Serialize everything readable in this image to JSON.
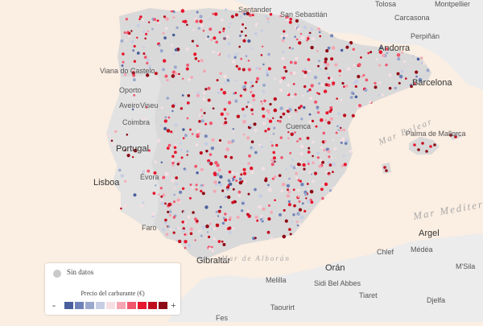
{
  "labels": {
    "places": [
      "Santander",
      "San Sebastián",
      "Tolosa",
      "Montpellier",
      "Carcasona",
      "Perpiñán",
      "Andorra",
      "Barcelona",
      "Viana do Castelo",
      "Oporto",
      "Aveiro",
      "Viseu",
      "Coimbra",
      "Portugal",
      "Lisboa",
      "Évora",
      "Faro",
      "Cuenca",
      "Palma de Mallorca",
      "Argel",
      "Gibraltar",
      "Orán",
      "Melilla",
      "Sidi Bel Abbes",
      "Chlef",
      "Médéa",
      "M'Sila",
      "Djelfa",
      "Tiaret",
      "Taourirt",
      "Fes"
    ],
    "seas": [
      "Mar Balear",
      "Mar Mediterráneo",
      "Mar de Alborán"
    ]
  },
  "legend": {
    "nodata_label": "Sin datos",
    "title": "Precio del carburante (€)",
    "minus": "-",
    "plus": "+",
    "colors": [
      "#4a5f9d",
      "#6f82b8",
      "#9aa8cd",
      "#c6cde4",
      "#f6dfe3",
      "#f5a5b2",
      "#f0566d",
      "#e6172e",
      "#c00d1e",
      "#8e0a16"
    ]
  },
  "colors": {
    "background_sea": "#fbeee2",
    "spain_land": "#d9d9d9",
    "other_land": "#ececec",
    "no_data": "#c9c9c9"
  }
}
